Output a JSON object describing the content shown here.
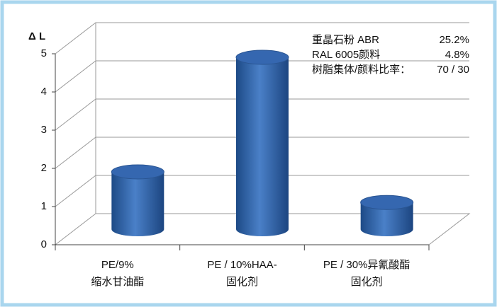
{
  "chart_data": {
    "type": "cylinder-bar",
    "y_label": "Δ L",
    "categories": [
      [
        "PE/9%",
        "缩水甘油酯"
      ],
      [
        "PE / 10%HAA-",
        "固化剂"
      ],
      [
        "PE / 30%异氰酸酯",
        "固化剂"
      ]
    ],
    "values": [
      1.5,
      4.5,
      0.7
    ],
    "color": "#2f62a8",
    "ylim": [
      0,
      5
    ],
    "yticks": [
      0,
      1,
      2,
      3,
      4,
      5
    ],
    "grid": true,
    "annotations": [
      [
        "重晶石粉 ABR",
        "25.2%"
      ],
      [
        "RAL 6005颜料",
        "4.8%"
      ],
      [
        "树脂集体/颜料比率：",
        "70 / 30"
      ]
    ]
  }
}
